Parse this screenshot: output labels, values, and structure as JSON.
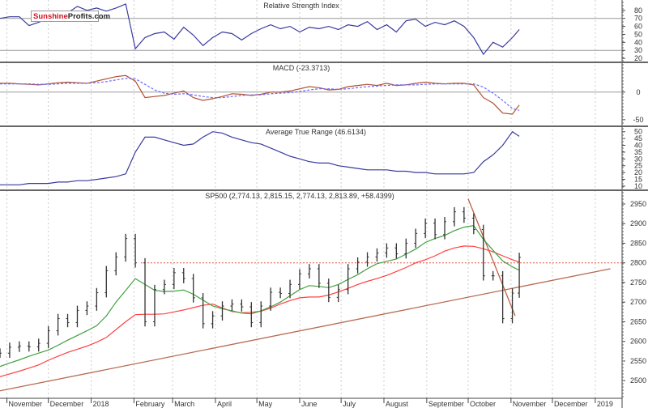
{
  "chart_data": [
    {
      "type": "line",
      "title": "Relative Strength Index",
      "ylim": [
        15,
        93
      ],
      "ticks": [
        20,
        30,
        40,
        50,
        60,
        70,
        80
      ],
      "ref_lines": [
        30,
        70
      ],
      "series": [
        {
          "color": "#3a3aa0",
          "values": [
            70,
            72,
            72,
            61,
            65,
            70,
            67,
            77,
            85,
            80,
            83,
            79,
            83,
            88,
            32,
            46,
            51,
            53,
            44,
            59,
            49,
            36,
            46,
            53,
            51,
            43,
            51,
            57,
            62,
            57,
            60,
            53,
            59,
            57,
            60,
            56,
            62,
            60,
            66,
            56,
            62,
            53,
            67,
            69,
            60,
            65,
            62,
            67,
            60,
            46,
            25,
            40,
            34,
            46,
            56
          ]
        }
      ]
    },
    {
      "type": "line",
      "title": "MACD (-23.3713)",
      "ylim": [
        -62,
        54
      ],
      "ticks": [
        0,
        -50
      ],
      "ref_lines": [
        0
      ],
      "series": [
        {
          "color": "#b05030",
          "values": [
            16,
            16,
            15,
            14,
            13,
            15,
            17,
            18,
            17,
            16,
            20,
            24,
            28,
            30,
            20,
            -10,
            -8,
            -6,
            -2,
            2,
            -10,
            -15,
            -12,
            -8,
            -3,
            -4,
            -6,
            -4,
            0,
            0,
            2,
            6,
            10,
            8,
            4,
            5,
            10,
            12,
            14,
            12,
            16,
            12,
            13,
            16,
            18,
            16,
            15,
            16,
            16,
            13,
            -10,
            -20,
            -38,
            -40,
            -23.37
          ]
        },
        {
          "color": "#6a6aff",
          "dashed": true,
          "values": [
            15,
            15,
            15,
            15,
            14,
            14,
            15,
            16,
            16,
            16,
            17,
            19,
            22,
            25,
            24,
            14,
            4,
            -2,
            -4,
            -3,
            -5,
            -8,
            -10,
            -10,
            -8,
            -6,
            -5,
            -5,
            -3,
            -2,
            -1,
            1,
            4,
            6,
            6,
            5,
            6,
            8,
            10,
            11,
            12,
            13,
            13,
            13,
            14,
            15,
            15,
            15,
            15,
            15,
            9,
            -2,
            -15,
            -30,
            -33
          ]
        }
      ]
    },
    {
      "type": "line",
      "title": "Average True Range (46.6134)",
      "ylim": [
        7,
        54
      ],
      "ticks": [
        10,
        15,
        20,
        25,
        30,
        35,
        40,
        45,
        50
      ],
      "series": [
        {
          "color": "#3a3aa0",
          "values": [
            11,
            11,
            11,
            12,
            12,
            12,
            13,
            13,
            14,
            14,
            15,
            16,
            17,
            19,
            35,
            46,
            46,
            44,
            42,
            40,
            41,
            46,
            50,
            49,
            46,
            44,
            42,
            41,
            38,
            35,
            32,
            30,
            28,
            27,
            27,
            25,
            24,
            23,
            22,
            22,
            22,
            21,
            21,
            20,
            20,
            19,
            19,
            19,
            19,
            20,
            28,
            33,
            40,
            50,
            46.6
          ]
        }
      ]
    },
    {
      "type": "bar",
      "title": "SP500 (2,774.13, 2,815.15, 2,774.13, 2,813.89, +58.4399)",
      "ylim": [
        2455,
        2985
      ],
      "ticks": [
        2500,
        2550,
        2600,
        2650,
        2700,
        2750,
        2800,
        2850,
        2900,
        2950
      ],
      "close": [
        2570,
        2585,
        2588,
        2586,
        2595,
        2627,
        2658,
        2648,
        2679,
        2690,
        2724,
        2780,
        2815,
        2862,
        2800,
        2650,
        2732,
        2745,
        2775,
        2760,
        2711,
        2645,
        2665,
        2690,
        2695,
        2688,
        2648,
        2690,
        2725,
        2722,
        2745,
        2772,
        2785,
        2748,
        2712,
        2732,
        2785,
        2802,
        2815,
        2825,
        2838,
        2823,
        2850,
        2875,
        2901,
        2872,
        2905,
        2930,
        2914,
        2885,
        2767,
        2767,
        2658,
        2723,
        2813.89
      ],
      "ma_green": [
        2536,
        2545,
        2553,
        2562,
        2570,
        2578,
        2590,
        2603,
        2615,
        2627,
        2640,
        2665,
        2700,
        2730,
        2760,
        2745,
        2730,
        2727,
        2728,
        2731,
        2720,
        2705,
        2690,
        2683,
        2678,
        2672,
        2670,
        2678,
        2688,
        2700,
        2716,
        2732,
        2742,
        2740,
        2737,
        2745,
        2758,
        2770,
        2785,
        2798,
        2804,
        2810,
        2822,
        2835,
        2852,
        2862,
        2870,
        2882,
        2891,
        2895,
        2860,
        2832,
        2805,
        2790,
        2781
      ],
      "ma_red": [
        2510,
        2517,
        2524,
        2532,
        2540,
        2552,
        2562,
        2572,
        2580,
        2588,
        2598,
        2610,
        2630,
        2650,
        2668,
        2669,
        2669,
        2670,
        2675,
        2680,
        2686,
        2692,
        2695,
        2685,
        2676,
        2673,
        2674,
        2677,
        2685,
        2695,
        2704,
        2711,
        2713,
        2713,
        2718,
        2726,
        2735,
        2745,
        2753,
        2760,
        2768,
        2778,
        2788,
        2800,
        2808,
        2818,
        2830,
        2838,
        2843,
        2842,
        2836,
        2828,
        2818,
        2808,
        2802
      ],
      "resistance": 2800,
      "support_line": {
        "from": [
          "2017-10-27",
          2474
        ],
        "to": [
          "2019-01-12",
          2785
        ]
      },
      "down_line": {
        "from": [
          "2018-10-01",
          2963
        ],
        "to": [
          "2018-11-04",
          2665
        ]
      }
    }
  ],
  "dates": [
    "2017-10-27",
    "2017-11-03",
    "2017-11-10",
    "2017-11-17",
    "2017-11-24",
    "2017-12-01",
    "2017-12-08",
    "2017-12-15",
    "2017-12-22",
    "2017-12-29",
    "2018-01-05",
    "2018-01-12",
    "2018-01-19",
    "2018-01-26",
    "2018-02-02",
    "2018-02-09",
    "2018-02-16",
    "2018-02-23",
    "2018-03-02",
    "2018-03-09",
    "2018-03-16",
    "2018-03-23",
    "2018-03-30",
    "2018-04-06",
    "2018-04-13",
    "2018-04-20",
    "2018-04-27",
    "2018-05-04",
    "2018-05-11",
    "2018-05-18",
    "2018-05-25",
    "2018-06-01",
    "2018-06-08",
    "2018-06-15",
    "2018-06-22",
    "2018-06-29",
    "2018-07-06",
    "2018-07-13",
    "2018-07-20",
    "2018-07-27",
    "2018-08-03",
    "2018-08-10",
    "2018-08-17",
    "2018-08-24",
    "2018-08-31",
    "2018-09-07",
    "2018-09-14",
    "2018-09-21",
    "2018-09-28",
    "2018-10-05",
    "2018-10-12",
    "2018-10-19",
    "2018-10-26",
    "2018-11-02",
    "2018-11-07"
  ],
  "x_axis": [
    {
      "label": "November",
      "date": "2017-11-01"
    },
    {
      "label": "December",
      "date": "2017-12-01"
    },
    {
      "label": "2018",
      "date": "2018-01-01"
    },
    {
      "label": "February",
      "date": "2018-02-01"
    },
    {
      "label": "March",
      "date": "2018-03-01"
    },
    {
      "label": "April",
      "date": "2018-04-01"
    },
    {
      "label": "May",
      "date": "2018-05-01"
    },
    {
      "label": "June",
      "date": "2018-06-01"
    },
    {
      "label": "July",
      "date": "2018-07-01"
    },
    {
      "label": "August",
      "date": "2018-08-01"
    },
    {
      "label": "September",
      "date": "2018-09-01"
    },
    {
      "label": "October",
      "date": "2018-10-01"
    },
    {
      "label": "November",
      "date": "2018-11-01"
    },
    {
      "label": "December",
      "date": "2018-12-01"
    },
    {
      "label": "2019",
      "date": "2019-01-01"
    }
  ],
  "logo": {
    "part1": "Sunshine",
    "part2": "Profits.com"
  }
}
